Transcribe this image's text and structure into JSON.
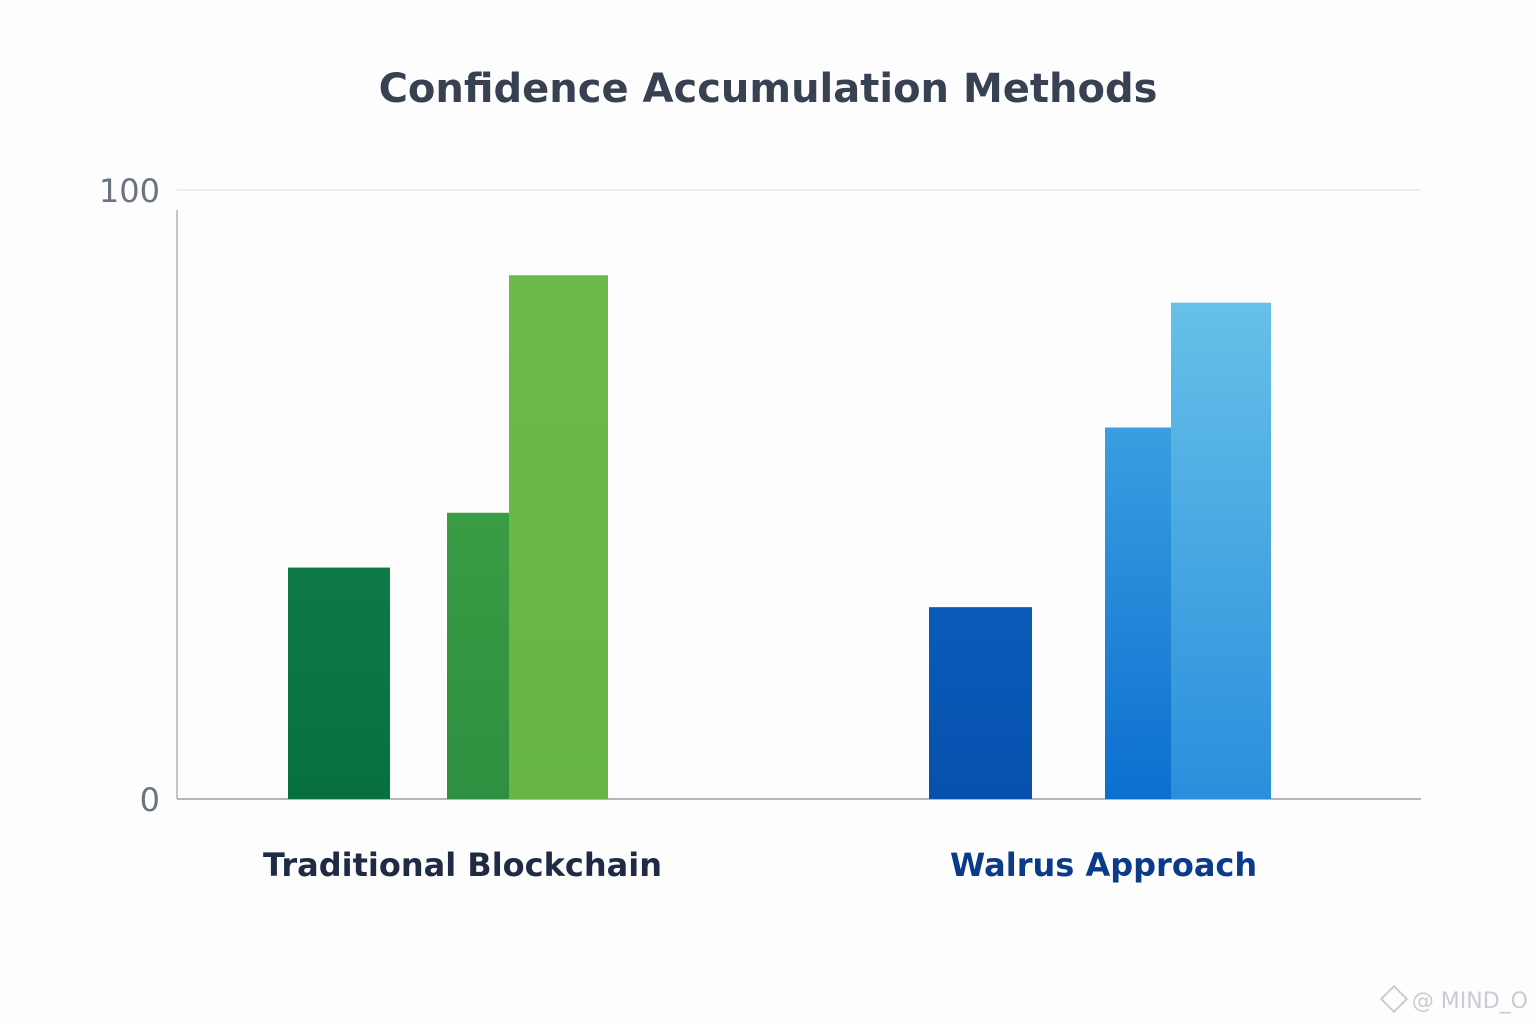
{
  "chart_data": {
    "type": "bar",
    "title": "Confidence Accumulation Methods",
    "xlabel": "",
    "ylabel": "",
    "ylim": [
      0,
      100
    ],
    "yticks": [
      "0",
      "100"
    ],
    "grid": true,
    "legend": "none",
    "categories": [
      "Traditional Blockchain",
      "Walrus Approach"
    ],
    "groups": [
      {
        "category": "Traditional Blockchain",
        "bars": [
          {
            "value": 38,
            "color_top": "#0e7a48",
            "color_bottom": "#08703f"
          },
          {
            "value": 47,
            "color_top": "#3a9c44",
            "color_bottom": "#2e8f40"
          },
          {
            "value": 86,
            "color_top": "#6cba4a",
            "color_bottom": "#66b545"
          }
        ]
      },
      {
        "category": "Walrus Approach",
        "bars": [
          {
            "value": 31.5,
            "color_top": "#0a5bb8",
            "color_bottom": "#0750ae"
          },
          {
            "value": 61,
            "color_top": "#3a9fe0",
            "color_bottom": "#0b6fd0"
          },
          {
            "value": 81.5,
            "color_top": "#66c0e8",
            "color_bottom": "#2a8fdc"
          }
        ]
      }
    ]
  },
  "colors": {
    "title": "#374151",
    "axis": "#9aa0ac",
    "gridline": "#e6e8ec",
    "tick_label": "#6b7280",
    "category_label_0": "#1f2a44",
    "category_label_1": "#0a3a8a"
  },
  "watermark": {
    "text": "@ MIND_O",
    "icon": "diamond-logo-icon"
  }
}
